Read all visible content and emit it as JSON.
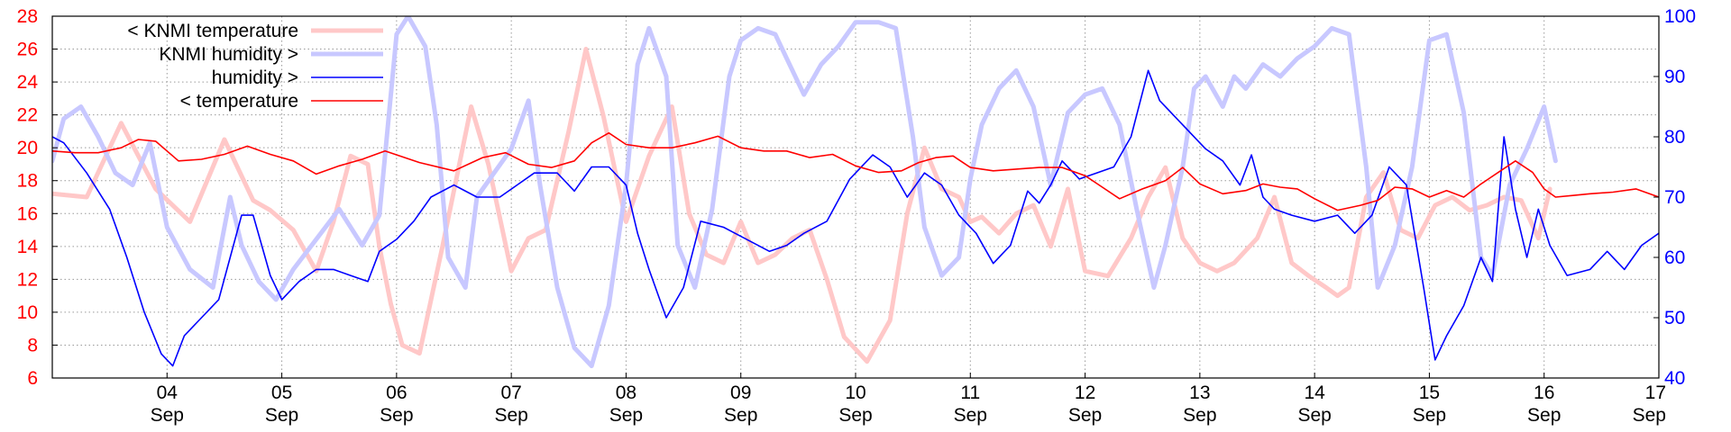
{
  "chart_data": {
    "type": "line",
    "title": "",
    "xlabel": "",
    "ylabel_left": "",
    "ylabel_right": "",
    "xlim": [
      3.0,
      17.0
    ],
    "ylim_left": [
      6,
      28
    ],
    "ylim_right": [
      40,
      100
    ],
    "grid": true,
    "legend_position": "top-left",
    "yticks_left": [
      "6",
      "8",
      "10",
      "12",
      "14",
      "16",
      "18",
      "20",
      "22",
      "24",
      "26",
      "28"
    ],
    "yticks_right": [
      "40",
      "50",
      "60",
      "70",
      "80",
      "90",
      "100"
    ],
    "xticks": [
      {
        "x": 4,
        "day": "04",
        "month": "Sep"
      },
      {
        "x": 5,
        "day": "05",
        "month": "Sep"
      },
      {
        "x": 6,
        "day": "06",
        "month": "Sep"
      },
      {
        "x": 7,
        "day": "07",
        "month": "Sep"
      },
      {
        "x": 8,
        "day": "08",
        "month": "Sep"
      },
      {
        "x": 9,
        "day": "09",
        "month": "Sep"
      },
      {
        "x": 10,
        "day": "10",
        "month": "Sep"
      },
      {
        "x": 11,
        "day": "11",
        "month": "Sep"
      },
      {
        "x": 12,
        "day": "12",
        "month": "Sep"
      },
      {
        "x": 13,
        "day": "13",
        "month": "Sep"
      },
      {
        "x": 14,
        "day": "14",
        "month": "Sep"
      },
      {
        "x": 15,
        "day": "15",
        "month": "Sep"
      },
      {
        "x": 16,
        "day": "16",
        "month": "Sep"
      },
      {
        "x": 17,
        "day": "17",
        "month": "Sep"
      }
    ],
    "series": [
      {
        "name": "< KNMI temperature",
        "axis": "left",
        "color": "#ffc8c8",
        "width": 5,
        "x": [
          3.0,
          3.3,
          3.6,
          3.9,
          4.2,
          4.5,
          4.75,
          4.9,
          5.1,
          5.3,
          5.45,
          5.6,
          5.75,
          5.85,
          5.95,
          6.05,
          6.2,
          6.4,
          6.65,
          6.8,
          7.0,
          7.15,
          7.3,
          7.5,
          7.65,
          7.8,
          8.0,
          8.2,
          8.4,
          8.55,
          8.7,
          8.85,
          9.0,
          9.15,
          9.3,
          9.45,
          9.6,
          9.75,
          9.9,
          10.1,
          10.3,
          10.45,
          10.6,
          10.75,
          10.9,
          11.0,
          11.1,
          11.25,
          11.4,
          11.55,
          11.7,
          11.85,
          12.0,
          12.2,
          12.4,
          12.55,
          12.7,
          12.85,
          13.0,
          13.15,
          13.3,
          13.5,
          13.65,
          13.8,
          13.95,
          14.1,
          14.2,
          14.3,
          14.45,
          14.6,
          14.75,
          14.9,
          15.05,
          15.2,
          15.35,
          15.5,
          15.65,
          15.8,
          15.95,
          16.05
        ],
        "y": [
          17.2,
          17.0,
          21.5,
          17.5,
          15.5,
          20.5,
          16.8,
          16.2,
          15.0,
          12.5,
          15.5,
          19.5,
          19.0,
          14.0,
          10.5,
          8.0,
          7.5,
          14.0,
          22.5,
          19.0,
          12.5,
          14.5,
          15.0,
          21.0,
          26.0,
          22.0,
          15.5,
          19.5,
          22.5,
          16.0,
          13.5,
          13.0,
          15.5,
          13.0,
          13.5,
          14.5,
          15.0,
          12.0,
          8.5,
          7.0,
          9.5,
          16.0,
          20.0,
          17.5,
          17.0,
          15.5,
          15.8,
          14.8,
          16.0,
          16.5,
          14.0,
          17.5,
          12.5,
          12.2,
          14.5,
          17.0,
          18.8,
          14.5,
          13.0,
          12.5,
          13.0,
          14.5,
          17.0,
          13.0,
          12.2,
          11.5,
          11.0,
          11.5,
          17.0,
          18.5,
          15.0,
          14.5,
          16.5,
          17.0,
          16.2,
          16.5,
          17.0,
          16.8,
          14.5,
          17.5
        ]
      },
      {
        "name": "KNMI humidity >",
        "axis": "right",
        "color": "#c8c8ff",
        "width": 5,
        "x": [
          3.0,
          3.1,
          3.25,
          3.4,
          3.55,
          3.7,
          3.85,
          4.0,
          4.2,
          4.4,
          4.55,
          4.65,
          4.8,
          4.95,
          5.1,
          5.3,
          5.5,
          5.7,
          5.85,
          6.0,
          6.1,
          6.25,
          6.35,
          6.45,
          6.6,
          6.7,
          6.85,
          7.0,
          7.15,
          7.25,
          7.4,
          7.55,
          7.7,
          7.85,
          8.0,
          8.1,
          8.2,
          8.35,
          8.45,
          8.6,
          8.75,
          8.9,
          9.0,
          9.15,
          9.3,
          9.4,
          9.55,
          9.7,
          9.85,
          10.0,
          10.2,
          10.35,
          10.5,
          10.6,
          10.75,
          10.9,
          11.0,
          11.1,
          11.25,
          11.4,
          11.55,
          11.7,
          11.85,
          12.0,
          12.15,
          12.3,
          12.45,
          12.6,
          12.7,
          12.85,
          12.95,
          13.05,
          13.2,
          13.3,
          13.4,
          13.55,
          13.7,
          13.85,
          14.0,
          14.15,
          14.3,
          14.45,
          14.55,
          14.7,
          14.85,
          15.0,
          15.15,
          15.3,
          15.45,
          15.55,
          15.7,
          15.85,
          16.0,
          16.1
        ],
        "y": [
          76.0,
          83.0,
          85.0,
          80.0,
          74.0,
          72.0,
          79.0,
          65.0,
          58.0,
          55.0,
          70.0,
          62.0,
          56.0,
          53.0,
          58.0,
          63.0,
          68.0,
          62.0,
          67.0,
          97.0,
          100.0,
          95.0,
          82.0,
          60.0,
          55.0,
          70.0,
          74.0,
          78.0,
          86.0,
          72.0,
          55.0,
          45.0,
          42.0,
          52.0,
          72.0,
          92.0,
          98.0,
          90.0,
          62.0,
          55.0,
          68.0,
          90.0,
          96.0,
          98.0,
          97.0,
          93.0,
          87.0,
          92.0,
          95.0,
          99.0,
          99.0,
          98.0,
          80.0,
          65.0,
          57.0,
          60.0,
          73.0,
          82.0,
          88.0,
          91.0,
          85.0,
          72.0,
          84.0,
          87.0,
          88.0,
          82.0,
          68.0,
          55.0,
          62.0,
          75.0,
          88.0,
          90.0,
          85.0,
          90.0,
          88.0,
          92.0,
          90.0,
          93.0,
          95.0,
          98.0,
          97.0,
          75.0,
          55.0,
          62.0,
          75.0,
          96.0,
          97.0,
          84.0,
          60.0,
          57.0,
          72.0,
          78.0,
          85.0,
          76.0
        ]
      },
      {
        "name": "humidity >",
        "axis": "right",
        "color": "#0000ff",
        "width": 1.6,
        "x": [
          3.0,
          3.1,
          3.3,
          3.5,
          3.65,
          3.8,
          3.95,
          4.05,
          4.15,
          4.3,
          4.45,
          4.55,
          4.65,
          4.75,
          4.9,
          5.0,
          5.15,
          5.3,
          5.45,
          5.6,
          5.75,
          5.85,
          6.0,
          6.15,
          6.3,
          6.5,
          6.7,
          6.9,
          7.05,
          7.2,
          7.4,
          7.55,
          7.7,
          7.85,
          8.0,
          8.1,
          8.2,
          8.35,
          8.5,
          8.65,
          8.85,
          9.05,
          9.25,
          9.4,
          9.55,
          9.75,
          9.95,
          10.15,
          10.3,
          10.45,
          10.6,
          10.75,
          10.9,
          11.05,
          11.2,
          11.35,
          11.5,
          11.6,
          11.7,
          11.8,
          11.95,
          12.1,
          12.25,
          12.4,
          12.55,
          12.65,
          12.75,
          12.9,
          13.05,
          13.2,
          13.35,
          13.45,
          13.55,
          13.65,
          13.8,
          14.0,
          14.2,
          14.35,
          14.5,
          14.65,
          14.8,
          14.95,
          15.05,
          15.15,
          15.3,
          15.45,
          15.55,
          15.65,
          15.75,
          15.85,
          15.95,
          16.05,
          16.2,
          16.4,
          16.55,
          16.7,
          16.85,
          17.0
        ],
        "y": [
          80.0,
          79.0,
          74.0,
          68.0,
          60.0,
          51.0,
          44.0,
          42.0,
          47.0,
          50.0,
          53.0,
          60.0,
          67.0,
          67.0,
          57.0,
          53.0,
          56.0,
          58.0,
          58.0,
          57.0,
          56.0,
          61.0,
          63.0,
          66.0,
          70.0,
          72.0,
          70.0,
          70.0,
          72.0,
          74.0,
          74.0,
          71.0,
          75.0,
          75.0,
          72.0,
          64.0,
          58.0,
          50.0,
          55.0,
          66.0,
          65.0,
          63.0,
          61.0,
          62.0,
          64.0,
          66.0,
          73.0,
          77.0,
          75.0,
          70.0,
          74.0,
          72.0,
          67.0,
          64.0,
          59.0,
          62.0,
          71.0,
          69.0,
          72.0,
          76.0,
          73.0,
          74.0,
          75.0,
          80.0,
          91.0,
          86.0,
          84.0,
          81.0,
          78.0,
          76.0,
          72.0,
          77.0,
          70.0,
          68.0,
          67.0,
          66.0,
          67.0,
          64.0,
          67.0,
          75.0,
          72.0,
          55.0,
          43.0,
          47.0,
          52.0,
          60.0,
          56.0,
          80.0,
          68.0,
          60.0,
          68.0,
          62.0,
          57.0,
          58.0,
          61.0,
          58.0,
          62.0,
          64.0
        ]
      },
      {
        "name": "< temperature",
        "axis": "left",
        "color": "#ff0000",
        "width": 1.6,
        "x": [
          3.0,
          3.2,
          3.4,
          3.6,
          3.75,
          3.9,
          4.1,
          4.3,
          4.5,
          4.7,
          4.9,
          5.1,
          5.3,
          5.5,
          5.7,
          5.9,
          6.2,
          6.5,
          6.75,
          6.95,
          7.15,
          7.35,
          7.55,
          7.7,
          7.85,
          8.0,
          8.2,
          8.4,
          8.6,
          8.8,
          9.0,
          9.2,
          9.4,
          9.6,
          9.8,
          10.0,
          10.2,
          10.4,
          10.55,
          10.7,
          10.85,
          11.0,
          11.2,
          11.4,
          11.6,
          11.8,
          12.0,
          12.15,
          12.3,
          12.5,
          12.7,
          12.85,
          13.0,
          13.2,
          13.4,
          13.55,
          13.7,
          13.85,
          14.0,
          14.2,
          14.4,
          14.55,
          14.7,
          14.85,
          15.0,
          15.15,
          15.3,
          15.45,
          15.6,
          15.75,
          15.9,
          16.0,
          16.1,
          16.25,
          16.4,
          16.6,
          16.8,
          17.0
        ],
        "y": [
          19.8,
          19.7,
          19.7,
          20.0,
          20.5,
          20.4,
          19.2,
          19.3,
          19.6,
          20.1,
          19.6,
          19.2,
          18.4,
          18.9,
          19.3,
          19.8,
          19.1,
          18.6,
          19.4,
          19.7,
          19.0,
          18.8,
          19.2,
          20.3,
          20.9,
          20.2,
          20.0,
          20.0,
          20.3,
          20.7,
          20.0,
          19.8,
          19.8,
          19.4,
          19.6,
          18.9,
          18.5,
          18.6,
          19.1,
          19.4,
          19.5,
          18.8,
          18.6,
          18.7,
          18.8,
          18.8,
          18.3,
          17.6,
          16.9,
          17.5,
          18.0,
          18.8,
          17.8,
          17.2,
          17.4,
          17.8,
          17.6,
          17.5,
          16.9,
          16.2,
          16.5,
          16.8,
          17.6,
          17.5,
          17.0,
          17.4,
          17.0,
          17.8,
          18.5,
          19.2,
          18.5,
          17.5,
          17.0,
          17.1,
          17.2,
          17.3,
          17.5,
          17.0
        ]
      }
    ]
  }
}
